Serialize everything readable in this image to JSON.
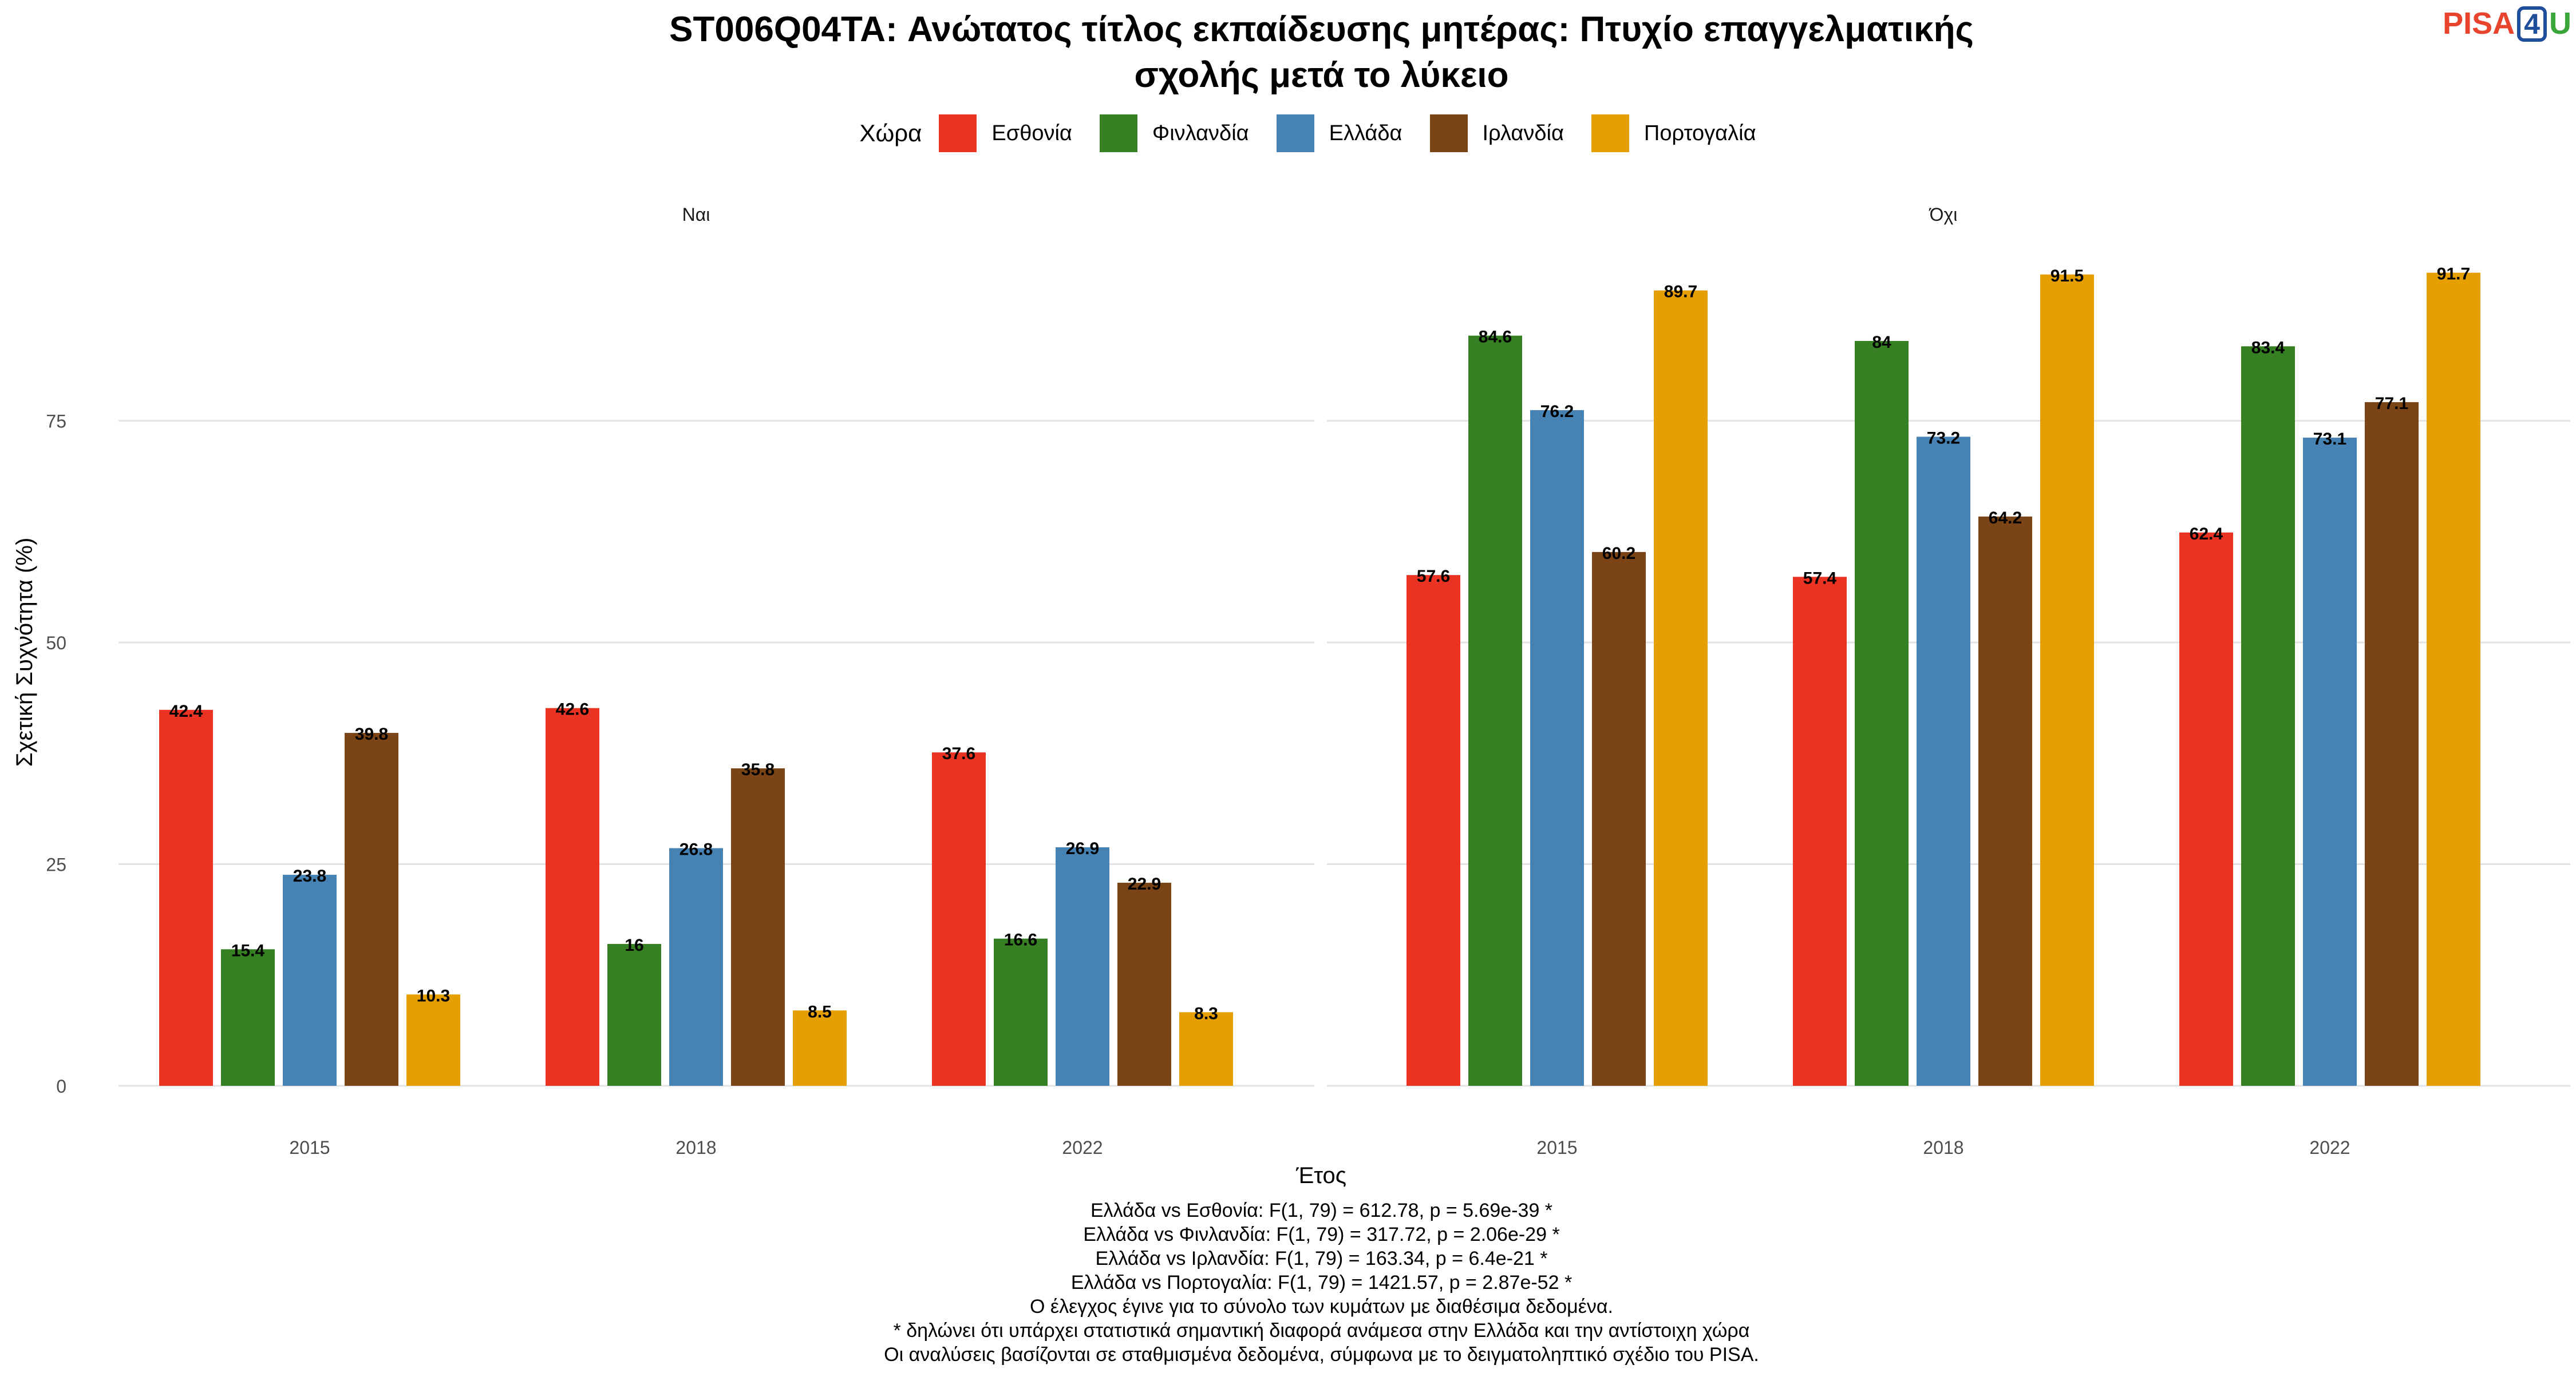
{
  "title_lines": [
    "ST006Q04TA: Ανώτατος τίτλος εκπαίδευσης μητέρας: Πτυχίο επαγγελματικής",
    "σχολής μετά το λύκειο"
  ],
  "logo": {
    "part1": "PISA",
    "part2": "4",
    "part3": "U",
    "colors": {
      "pisa": "#e8432d",
      "four": "#1f4e9c",
      "u": "#3aa63a"
    }
  },
  "legend": {
    "title": "Χώρα"
  },
  "chart_data": {
    "type": "bar",
    "facets": [
      "Ναι",
      "Όχι"
    ],
    "categories": [
      "2015",
      "2018",
      "2022"
    ],
    "xlabel": "Έτος",
    "ylabel": "Σχετική Συχνότητα (%)",
    "yticks": [
      0,
      25,
      50,
      75
    ],
    "ylim": [
      0,
      96
    ],
    "grid": true,
    "legend_position": "top",
    "series": [
      {
        "name": "Εσθονία",
        "color": "#ea3323",
        "values": {
          "Ναι": [
            42.4,
            42.6,
            37.6
          ],
          "Όχι": [
            57.6,
            57.4,
            62.4
          ]
        }
      },
      {
        "name": "Φινλανδία",
        "color": "#367f23",
        "values": {
          "Ναι": [
            15.4,
            16,
            16.6
          ],
          "Όχι": [
            84.6,
            84,
            83.4
          ]
        }
      },
      {
        "name": "Ελλάδα",
        "color": "#4682b4",
        "values": {
          "Ναι": [
            23.8,
            26.8,
            26.9
          ],
          "Όχι": [
            76.2,
            73.2,
            73.1
          ]
        }
      },
      {
        "name": "Ιρλανδία",
        "color": "#7a4416",
        "values": {
          "Ναι": [
            39.8,
            35.8,
            22.9
          ],
          "Όχι": [
            60.2,
            64.2,
            77.1
          ]
        }
      },
      {
        "name": "Πορτογαλία",
        "color": "#e69f00",
        "values": {
          "Ναι": [
            10.3,
            8.5,
            8.3
          ],
          "Όχι": [
            89.7,
            91.5,
            91.7
          ]
        }
      }
    ]
  },
  "caption_lines": [
    "Ελλάδα vs Εσθονία: F(1, 79) = 612.78, p = 5.69e-39 *",
    "Ελλάδα vs Φινλανδία: F(1, 79) = 317.72, p = 2.06e-29 *",
    "Ελλάδα vs Ιρλανδία: F(1, 79) = 163.34, p = 6.4e-21 *",
    "Ελλάδα vs Πορτογαλία: F(1, 79) = 1421.57, p = 2.87e-52 *",
    "Ο έλεγχος έγινε για το σύνολο των κυμάτων με διαθέσιμα δεδομένα.",
    "* δηλώνει ότι υπάρχει στατιστικά σημαντική διαφορά ανάμεσα στην Ελλάδα και την αντίστοιχη χώρα",
    "Οι αναλύσεις βασίζονται σε σταθμισμένα δεδομένα, σύμφωνα με το δειγματοληπτικό σχέδιο του PISA."
  ]
}
